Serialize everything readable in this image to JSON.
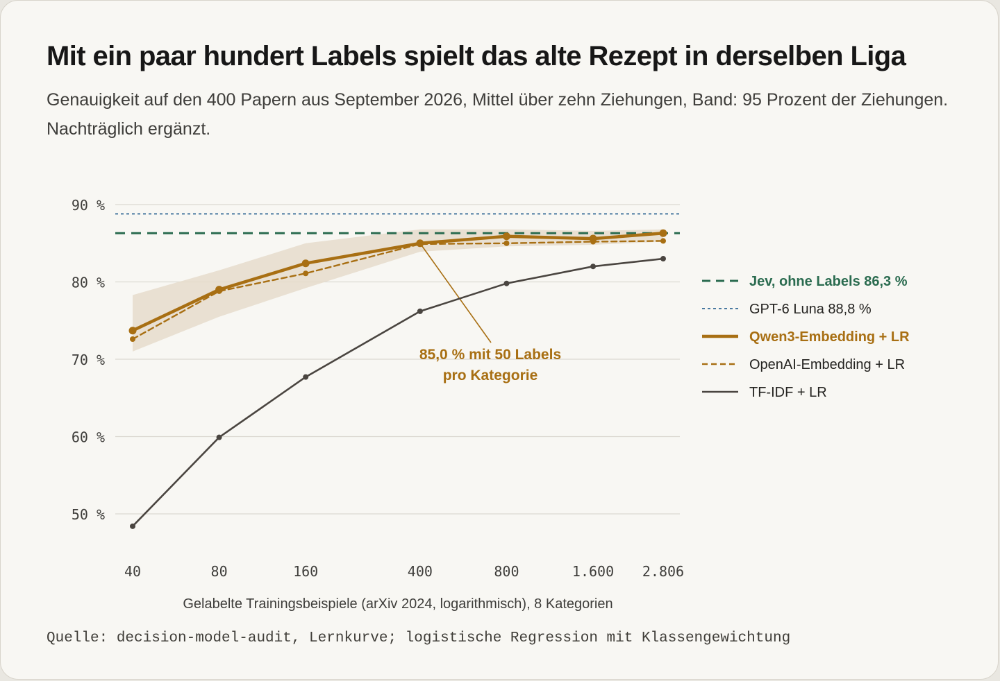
{
  "title": "Mit ein paar hundert Labels spielt das alte Rezept in derselben Liga",
  "subtitle": "Genauigkeit auf den 400 Papern aus September 2026, Mittel über zehn Ziehungen, Band: 95 Prozent der Ziehungen. Nachträglich ergänzt.",
  "source": "Quelle: decision-model-audit, Lernkurve; logistische Regression mit Klassengewichtung",
  "chart_data": {
    "type": "line",
    "xlabel": "Gelabelte Trainingsbeispiele (arXiv 2024, logarithmisch), 8 Kategorien",
    "x_scale": "log",
    "x": [
      40,
      80,
      160,
      400,
      800,
      1600,
      2806
    ],
    "x_tick_labels": [
      "40",
      "80",
      "160",
      "400",
      "800",
      "1.600",
      "2.806"
    ],
    "ylim": [
      45,
      91
    ],
    "y_ticks": [
      50,
      60,
      70,
      80,
      90
    ],
    "y_tick_labels": [
      "50 %",
      "60 %",
      "70 %",
      "80 %",
      "90 %"
    ],
    "grid": "horizontal",
    "legend_position": "right",
    "series": [
      {
        "name": "Qwen3-Embedding + LR",
        "color": "#a86f13",
        "style": "solid-thick",
        "markers": true,
        "values": [
          73.7,
          79.0,
          82.4,
          85.0,
          85.9,
          85.6,
          86.3
        ],
        "band_low": [
          71.0,
          75.5,
          79.2,
          83.9,
          84.6,
          84.8,
          85.2
        ],
        "band_high": [
          78.3,
          81.5,
          85.0,
          86.8,
          86.8,
          86.6,
          86.8
        ]
      },
      {
        "name": "OpenAI-Embedding + LR",
        "color": "#a86f13",
        "style": "dashed",
        "markers": true,
        "values": [
          72.6,
          78.8,
          81.1,
          84.9,
          85.0,
          85.2,
          85.3
        ]
      },
      {
        "name": "TF-IDF + LR",
        "color": "#4a4540",
        "style": "solid",
        "markers": true,
        "values": [
          48.4,
          59.9,
          67.7,
          76.2,
          79.8,
          82.0,
          83.0
        ]
      }
    ],
    "reference_lines": [
      {
        "name": "Jev, ohne Labels 86,3 %",
        "value": 86.3,
        "color": "#2a6b4f",
        "style": "dashed-thick"
      },
      {
        "name": "GPT-6 Luna 88,8 %",
        "value": 88.8,
        "color": "#4a79a0",
        "style": "dotted"
      }
    ],
    "annotation": {
      "lines": [
        "85,0 % mit 50 Labels",
        "pro Kategorie"
      ],
      "x": 400,
      "y": 85.0,
      "color": "#a86f13"
    }
  }
}
